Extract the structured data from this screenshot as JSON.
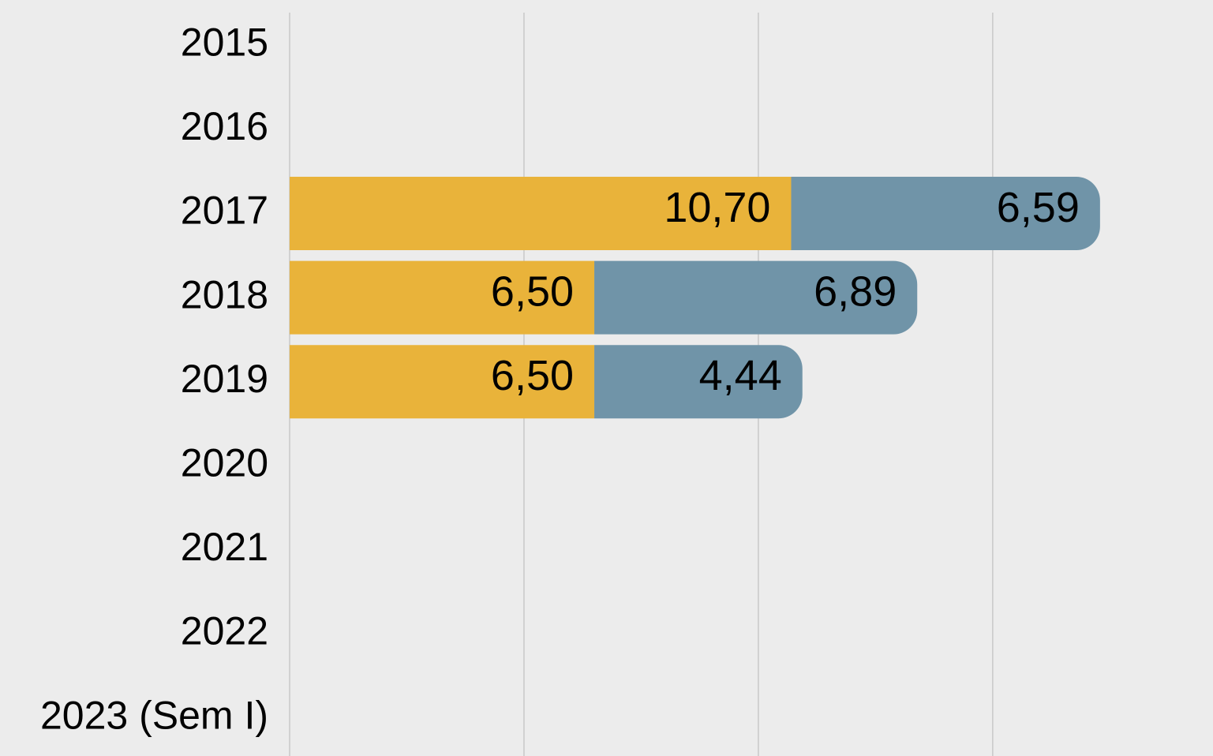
{
  "chart_data": {
    "type": "bar",
    "orientation": "horizontal",
    "stacked": true,
    "categories": [
      "2015",
      "2016",
      "2017",
      "2018",
      "2019",
      "2020",
      "2021",
      "2022",
      "2023 (Sem I)"
    ],
    "series": [
      {
        "color": "#e9b33a",
        "values": [
          null,
          null,
          10.7,
          6.5,
          6.5,
          null,
          null,
          null,
          null
        ],
        "value_labels": [
          null,
          null,
          "10,70",
          "6,50",
          "6,50",
          null,
          null,
          null,
          null
        ]
      },
      {
        "color": "#7094a8",
        "values": [
          null,
          null,
          6.59,
          6.89,
          4.44,
          null,
          null,
          null,
          null
        ],
        "value_labels": [
          null,
          null,
          "6,59",
          "6,89",
          "4,44",
          null,
          null,
          null,
          null
        ]
      }
    ],
    "xlim": [
      0,
      19.7
    ],
    "xticks": [
      0,
      5,
      10,
      15
    ],
    "grid": true
  }
}
